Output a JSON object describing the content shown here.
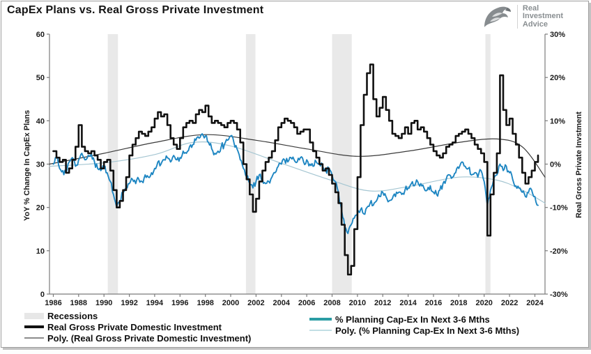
{
  "title": "CapEx Plans vs. Real Gross Private Investment",
  "logo": {
    "line1": "Real",
    "line2": "Investment",
    "line3": "Advice",
    "icon": "eagle-icon",
    "color": "#8A8F92"
  },
  "chart_data": {
    "type": "line",
    "title": "CapEx Plans vs. Real Gross Private Investment",
    "grid": false,
    "legend_position": "bottom",
    "colors": {
      "recession_band": "#E9E9E9",
      "axis": "#7B7B7B",
      "background": "#FFFFFF"
    },
    "left_axis": {
      "label": "YoY % Change In CapEx Plans",
      "min": 0,
      "max": 60,
      "ticks": [
        0,
        10,
        20,
        30,
        40,
        50,
        60
      ]
    },
    "right_axis": {
      "label": "Real Gross Private Invstment",
      "min": -30,
      "max": 30,
      "ticks": [
        {
          "label": "30%",
          "value": 30
        },
        {
          "label": "20%",
          "value": 20
        },
        {
          "label": "10%",
          "value": 10
        },
        {
          "label": "0%",
          "value": 0
        },
        {
          "label": "-10%",
          "value": -10
        },
        {
          "label": "-20%",
          "value": -20
        },
        {
          "label": "-30%",
          "value": -30
        }
      ]
    },
    "x_axis": {
      "min": 1985.7,
      "max": 2024.8,
      "tick_years": [
        1986,
        1988,
        1990,
        1992,
        1994,
        1996,
        1998,
        2000,
        2002,
        2004,
        2006,
        2008,
        2010,
        2012,
        2014,
        2016,
        2018,
        2020,
        2022,
        2024
      ]
    },
    "recessions": [
      [
        1990.3,
        1991.1
      ],
      [
        2001.2,
        2001.95
      ],
      [
        2008.0,
        2009.55
      ],
      [
        2020.1,
        2020.5
      ]
    ],
    "series": [
      {
        "name": "Poly. (% Planning Cap-Ex In Next 3-6 Mths)",
        "axis": "left",
        "color": "#A5C6D2",
        "width": 1.2,
        "style": "smooth",
        "z": 1,
        "x": [
          1985.7,
          1990,
          1994,
          1997,
          2000,
          2004,
          2008,
          2011,
          2014,
          2018,
          2021,
          2023,
          2024.8
        ],
        "values": [
          29.5,
          30.3,
          32.2,
          35,
          34.2,
          30.2,
          26.2,
          23.8,
          24.8,
          27,
          26.3,
          24,
          21
        ]
      },
      {
        "name": "Poly. (Real Gross Private Domestic Investment)",
        "axis": "right",
        "color": "#3A3A3A",
        "width": 1.2,
        "style": "smooth",
        "z": 2,
        "x": [
          1985.7,
          1990,
          1994,
          1998,
          2002,
          2006,
          2010,
          2014,
          2018,
          2021,
          2023,
          2024.8
        ],
        "values": [
          0,
          2.5,
          5,
          6.8,
          5.5,
          3.5,
          1.8,
          3,
          5,
          5.8,
          4,
          -3
        ]
      },
      {
        "name": "% Planning Cap-Ex In Next 3-6 Mths",
        "axis": "left",
        "color": "#1E86C2",
        "width": 1.9,
        "style": "noisy",
        "z": 3,
        "x_start": 1986,
        "x_step": 0.25,
        "values": [
          30,
          31.5,
          29,
          28.5,
          28,
          30.5,
          31.5,
          29.5,
          31,
          32.5,
          31,
          32,
          32.5,
          30.5,
          29,
          28.5,
          29.5,
          28,
          26,
          23,
          20,
          21.5,
          23.5,
          24.5,
          25.5,
          26.5,
          25.5,
          26.5,
          26,
          27.5,
          27,
          28,
          29,
          30.5,
          30,
          31,
          31.5,
          30.5,
          32,
          31,
          31.5,
          33,
          32.5,
          34,
          34.5,
          35.5,
          36,
          37,
          36.5,
          35,
          33.5,
          32.5,
          33,
          34,
          34.5,
          35.5,
          36.5,
          35,
          33.5,
          31,
          29,
          27,
          25.5,
          24.5,
          26,
          27.5,
          26.5,
          25.5,
          26,
          27,
          28,
          29.5,
          30,
          31,
          30.5,
          31.5,
          31,
          30.5,
          31.5,
          30.5,
          31,
          30,
          29.5,
          30.5,
          30,
          29.5,
          28.5,
          29,
          27.5,
          26,
          23.5,
          19.5,
          15.5,
          14,
          16,
          17.5,
          18.5,
          19.5,
          18.5,
          20,
          21,
          20.5,
          21.5,
          22.5,
          23.5,
          22.5,
          21.5,
          22,
          22.5,
          23.5,
          23,
          24,
          24.5,
          25.5,
          25,
          26,
          25.5,
          24.5,
          24,
          25,
          23.5,
          23,
          24,
          25.5,
          26.5,
          27.5,
          27,
          28,
          29,
          30.5,
          29.5,
          29,
          27.5,
          28,
          27,
          28.5,
          26,
          20.5,
          24,
          26.5,
          27.5,
          30,
          28.5,
          29.5,
          28,
          26.5,
          25,
          24.5,
          23.5,
          22.5,
          23.5,
          24,
          22.5,
          20.5
        ]
      },
      {
        "name": "Real Gross Private Domestic Investment",
        "axis": "right",
        "color": "#111111",
        "width": 2.6,
        "style": "step",
        "z": 4,
        "x_start": 1986,
        "x_step": 0.25,
        "values": [
          3,
          1.5,
          0.5,
          1,
          -2,
          -1,
          1,
          4,
          9,
          4,
          3,
          2.5,
          3,
          2,
          1,
          -1,
          0.5,
          1,
          -1.5,
          -6,
          -10,
          -8.5,
          -6,
          -3,
          2,
          4.5,
          6,
          7.5,
          7,
          6.5,
          7.5,
          8.5,
          10.5,
          12,
          11,
          11.5,
          9,
          6,
          4.5,
          3.5,
          6,
          8.5,
          9.5,
          10,
          9.5,
          11.5,
          12.5,
          12,
          13.5,
          11,
          9.5,
          10,
          9.5,
          9,
          8.5,
          9.5,
          10,
          9.5,
          8,
          5,
          0,
          -3.5,
          -7,
          -11,
          -8,
          -4,
          -1.5,
          0.5,
          1.5,
          3,
          5.5,
          8.5,
          9.5,
          10.5,
          10,
          9.5,
          8.5,
          7,
          7.5,
          8,
          8,
          5,
          3,
          1.5,
          0,
          -1.5,
          -1,
          -2.5,
          -4.5,
          -6.5,
          -9,
          -14,
          -21,
          -25.5,
          -23.5,
          -15,
          -3,
          9,
          16,
          21,
          23,
          15,
          11,
          13,
          15.5,
          12.5,
          10,
          7,
          6.5,
          6,
          7,
          8.5,
          7,
          9.5,
          10,
          8,
          8.5,
          7.5,
          6,
          4.5,
          3,
          2,
          1.5,
          2.5,
          4,
          4.5,
          5,
          6.5,
          7,
          7.5,
          8,
          7,
          6,
          4.5,
          3.5,
          2.5,
          0.5,
          -16.5,
          -7,
          -2,
          2.5,
          20.5,
          12.5,
          9,
          10.5,
          7,
          4.5,
          1.5,
          -2,
          -4.5,
          -3,
          -1.5,
          0.5,
          2
        ]
      }
    ]
  },
  "legend": {
    "left_column": [
      {
        "label": "Recessions",
        "swatch": "band",
        "color": "#E7E7E7"
      },
      {
        "label": "Real Gross Private Domestic Investment",
        "swatch": "thick",
        "color": "#111111"
      },
      {
        "label": "Poly. (Real Gross Private Domestic Investment)",
        "swatch": "thin",
        "color": "#8C8C8C"
      }
    ],
    "right_column": [
      {
        "label": "% Planning Cap-Ex In Next 3-6 Mths",
        "swatch": "thick",
        "color": "#2B9DA4"
      },
      {
        "label": "Poly. (% Planning Cap-Ex In Next 3-6 Mths)",
        "swatch": "thin",
        "color": "#C2DEE4"
      }
    ]
  }
}
